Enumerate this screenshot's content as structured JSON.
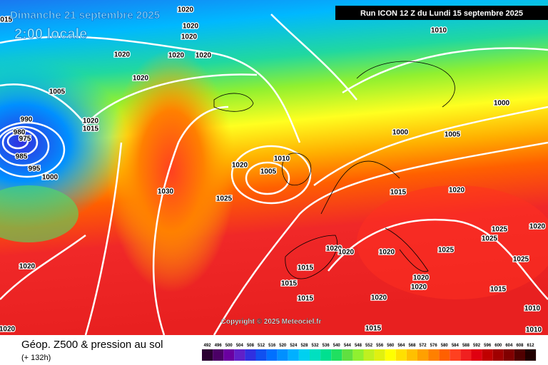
{
  "header": {
    "date": "Dimanche 21 septembre 2025",
    "time": "2:00 locale",
    "run": "Run ICON 12 Z du Lundi 15 septembre 2025"
  },
  "copyright": "Copyright © 2025 Meteociel.fr",
  "footer": {
    "title": "Géop. Z500 & pression au sol",
    "lead": "(+ 132h)"
  },
  "isobar_labels": [
    1015,
    1020,
    1020,
    1020,
    1020,
    1020,
    1020,
    1010,
    1005,
    1020,
    990,
    980,
    975,
    985,
    995,
    1000,
    1020,
    1015,
    1000,
    1000,
    1005,
    1010,
    1005,
    1020,
    1030,
    1025,
    1015,
    1020,
    1025,
    1020,
    1025,
    1020,
    1020,
    1020,
    1025,
    1020,
    1020,
    1015,
    1015,
    1015,
    1020,
    1025,
    1015,
    1010,
    1010,
    1020,
    1020,
    1015
  ],
  "legend": {
    "values": [
      492,
      496,
      500,
      504,
      508,
      512,
      516,
      520,
      524,
      528,
      532,
      536,
      540,
      544,
      548,
      552,
      556,
      560,
      564,
      568,
      572,
      576,
      580,
      584,
      588,
      592,
      596,
      600,
      604,
      608,
      612
    ],
    "colors": [
      "#2a0030",
      "#4b0066",
      "#6a00a0",
      "#6020c8",
      "#3030e0",
      "#1050f0",
      "#0070ff",
      "#0090ff",
      "#00b0ff",
      "#00d0f0",
      "#00e0c0",
      "#00e090",
      "#20e060",
      "#60e040",
      "#90f030",
      "#c0f020",
      "#e0f010",
      "#ffff00",
      "#ffe000",
      "#ffc000",
      "#ffa000",
      "#ff8000",
      "#ff6000",
      "#ff4020",
      "#f02020",
      "#e00010",
      "#c00000",
      "#a00000",
      "#800000",
      "#500000",
      "#200000"
    ]
  }
}
